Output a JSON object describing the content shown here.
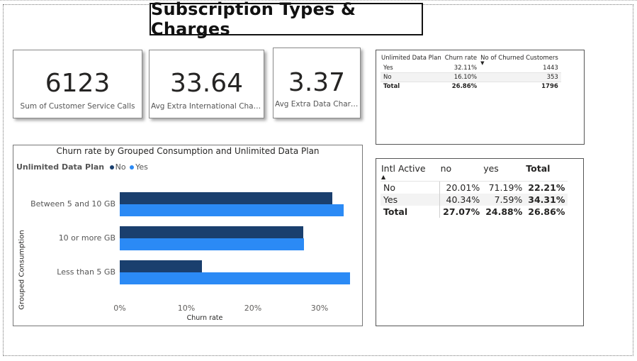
{
  "page_title": "Subscription Types & Charges",
  "cards": [
    {
      "value": "6123",
      "label": "Sum of Customer Service Calls"
    },
    {
      "value": "33.64",
      "label": "Avg Extra International Charg..."
    },
    {
      "value": "3.37",
      "label": "Avg Extra Data Charges"
    }
  ],
  "table1": {
    "headers": [
      "Unlimited Data Plan",
      "Churn rate",
      "No of Churned Customers"
    ],
    "rows": [
      [
        "Yes",
        "32.11%",
        "1443"
      ],
      [
        "No",
        "16.10%",
        "353"
      ]
    ],
    "total": [
      "Total",
      "26.86%",
      "1796"
    ]
  },
  "table2": {
    "headers": [
      "Intl Active",
      "no",
      "yes",
      "Total"
    ],
    "rows": [
      [
        "No",
        "20.01%",
        "71.19%",
        "22.21%"
      ],
      [
        "Yes",
        "40.34%",
        "7.59%",
        "34.31%"
      ]
    ],
    "total": [
      "Total",
      "27.07%",
      "24.88%",
      "26.86%"
    ]
  },
  "chart_data": {
    "type": "bar",
    "orientation": "horizontal",
    "title": "Churn rate by Grouped Consumption and Unlimited Data Plan",
    "legend_title": "Unlimited Data Plan",
    "legend_position": "top-left",
    "categories": [
      "Between 5 and 10 GB",
      "10 or more GB",
      "Less than 5 GB"
    ],
    "series": [
      {
        "name": "No",
        "color": "#1a3f6e",
        "values": [
          0.319,
          0.276,
          0.123
        ]
      },
      {
        "name": "Yes",
        "color": "#2b8af5",
        "values": [
          0.336,
          0.277,
          0.346
        ]
      }
    ],
    "xlabel": "Churn rate",
    "ylabel": "Grouped Consumption",
    "xlim": [
      0,
      0.35
    ],
    "x_ticks": [
      "0%",
      "10%",
      "20%",
      "30%"
    ],
    "grid": false
  }
}
